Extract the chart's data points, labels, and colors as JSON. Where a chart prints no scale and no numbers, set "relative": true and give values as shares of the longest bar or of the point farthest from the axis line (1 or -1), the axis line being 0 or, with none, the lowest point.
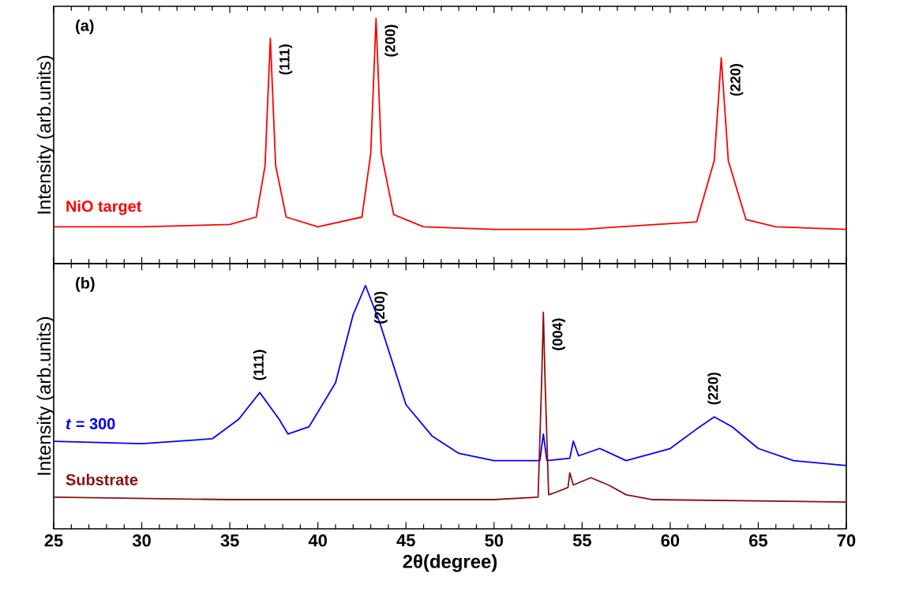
{
  "chart_data": [
    {
      "type": "line",
      "relative": true,
      "ylabel": "Intensity (arb.units)",
      "xlim": [
        25,
        70
      ],
      "xticks": [
        25,
        30,
        35,
        40,
        45,
        50,
        55,
        60,
        65,
        70
      ],
      "tick_labels": false,
      "annotations": [
        "(a)",
        {
          "text": "(111)",
          "x": 37.3,
          "y": 0.92
        },
        {
          "text": "(200)",
          "x": 43.3,
          "y": 1
        },
        {
          "text": "(220)",
          "x": 62.9,
          "y": 0.84
        }
      ],
      "series": [
        {
          "name": "NiO target",
          "color": "#ff0000",
          "x": [
            25,
            30,
            35,
            36.5,
            37.0,
            37.3,
            37.6,
            38.2,
            40,
            42.5,
            43.0,
            43.3,
            43.6,
            44.3,
            46,
            50,
            55,
            61.5,
            62.5,
            62.9,
            63.3,
            64.3,
            66,
            70
          ],
          "values": [
            0.15,
            0.15,
            0.16,
            0.19,
            0.4,
            0.92,
            0.4,
            0.19,
            0.15,
            0.19,
            0.45,
            1,
            0.45,
            0.2,
            0.15,
            0.14,
            0.14,
            0.17,
            0.42,
            0.84,
            0.42,
            0.18,
            0.15,
            0.14
          ]
        }
      ]
    },
    {
      "type": "line",
      "relative": true,
      "ylabel": "Intensity (arb.units)",
      "xlabel": "2θ(degree)",
      "xlim": [
        25,
        70
      ],
      "xticks": [
        25,
        30,
        35,
        40,
        45,
        50,
        55,
        60,
        65,
        70
      ],
      "tick_labels": "x",
      "annotations": [
        "(b)",
        {
          "text": "(111)",
          "x": 36.7,
          "y": 0.56
        },
        {
          "text": "(200)",
          "x": 42.7,
          "y": 1
        },
        {
          "text": "(004)",
          "x": 52.8,
          "y": 0.89
        },
        {
          "text": "(220)",
          "x": 62.5,
          "y": 0.46
        }
      ],
      "series": [
        {
          "name": "*t* = 300",
          "color": "#0000ff",
          "x": [
            25,
            30,
            34,
            35.5,
            36.7,
            37.8,
            38.3,
            39.5,
            41,
            42.0,
            42.7,
            43.5,
            45,
            46.5,
            48,
            50,
            52.6,
            52.8,
            53.0,
            54.3,
            54.5,
            54.8,
            56,
            57.5,
            60,
            61.5,
            62.5,
            63.5,
            65,
            67,
            70
          ],
          "values": [
            0.36,
            0.35,
            0.37,
            0.45,
            0.56,
            0.45,
            0.39,
            0.42,
            0.6,
            0.88,
            1,
            0.85,
            0.51,
            0.38,
            0.31,
            0.28,
            0.28,
            0.39,
            0.28,
            0.29,
            0.36,
            0.3,
            0.33,
            0.28,
            0.33,
            0.41,
            0.46,
            0.42,
            0.33,
            0.28,
            0.26
          ]
        },
        {
          "name": "Substrate",
          "color": "#8b1010",
          "x": [
            25,
            35,
            45,
            50,
            52.5,
            52.7,
            52.8,
            52.9,
            53.1,
            53.5,
            54.2,
            54.3,
            54.5,
            55.5,
            56.5,
            57.5,
            59,
            70
          ],
          "values": [
            0.13,
            0.12,
            0.12,
            0.12,
            0.13,
            0.6,
            0.89,
            0.6,
            0.14,
            0.15,
            0.17,
            0.23,
            0.18,
            0.21,
            0.18,
            0.14,
            0.12,
            0.11
          ]
        }
      ]
    }
  ]
}
